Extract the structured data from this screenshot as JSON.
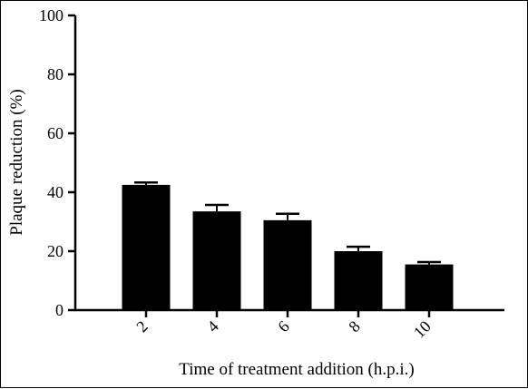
{
  "chart_data": {
    "type": "bar",
    "title": "",
    "xlabel": "Time of treatment addition (h.p.i.)",
    "ylabel": "Plaque reduction (%)",
    "ylim": [
      0,
      100
    ],
    "yticks": [
      0,
      20,
      40,
      60,
      80,
      100
    ],
    "categories": [
      "2",
      "4",
      "6",
      "8",
      "10"
    ],
    "values": [
      42.5,
      33.5,
      30.5,
      20,
      15.5
    ],
    "errors": [
      0.8,
      2.2,
      2.2,
      1.5,
      0.8
    ],
    "bar_color": "#000000",
    "grid": false,
    "legend": "none"
  }
}
